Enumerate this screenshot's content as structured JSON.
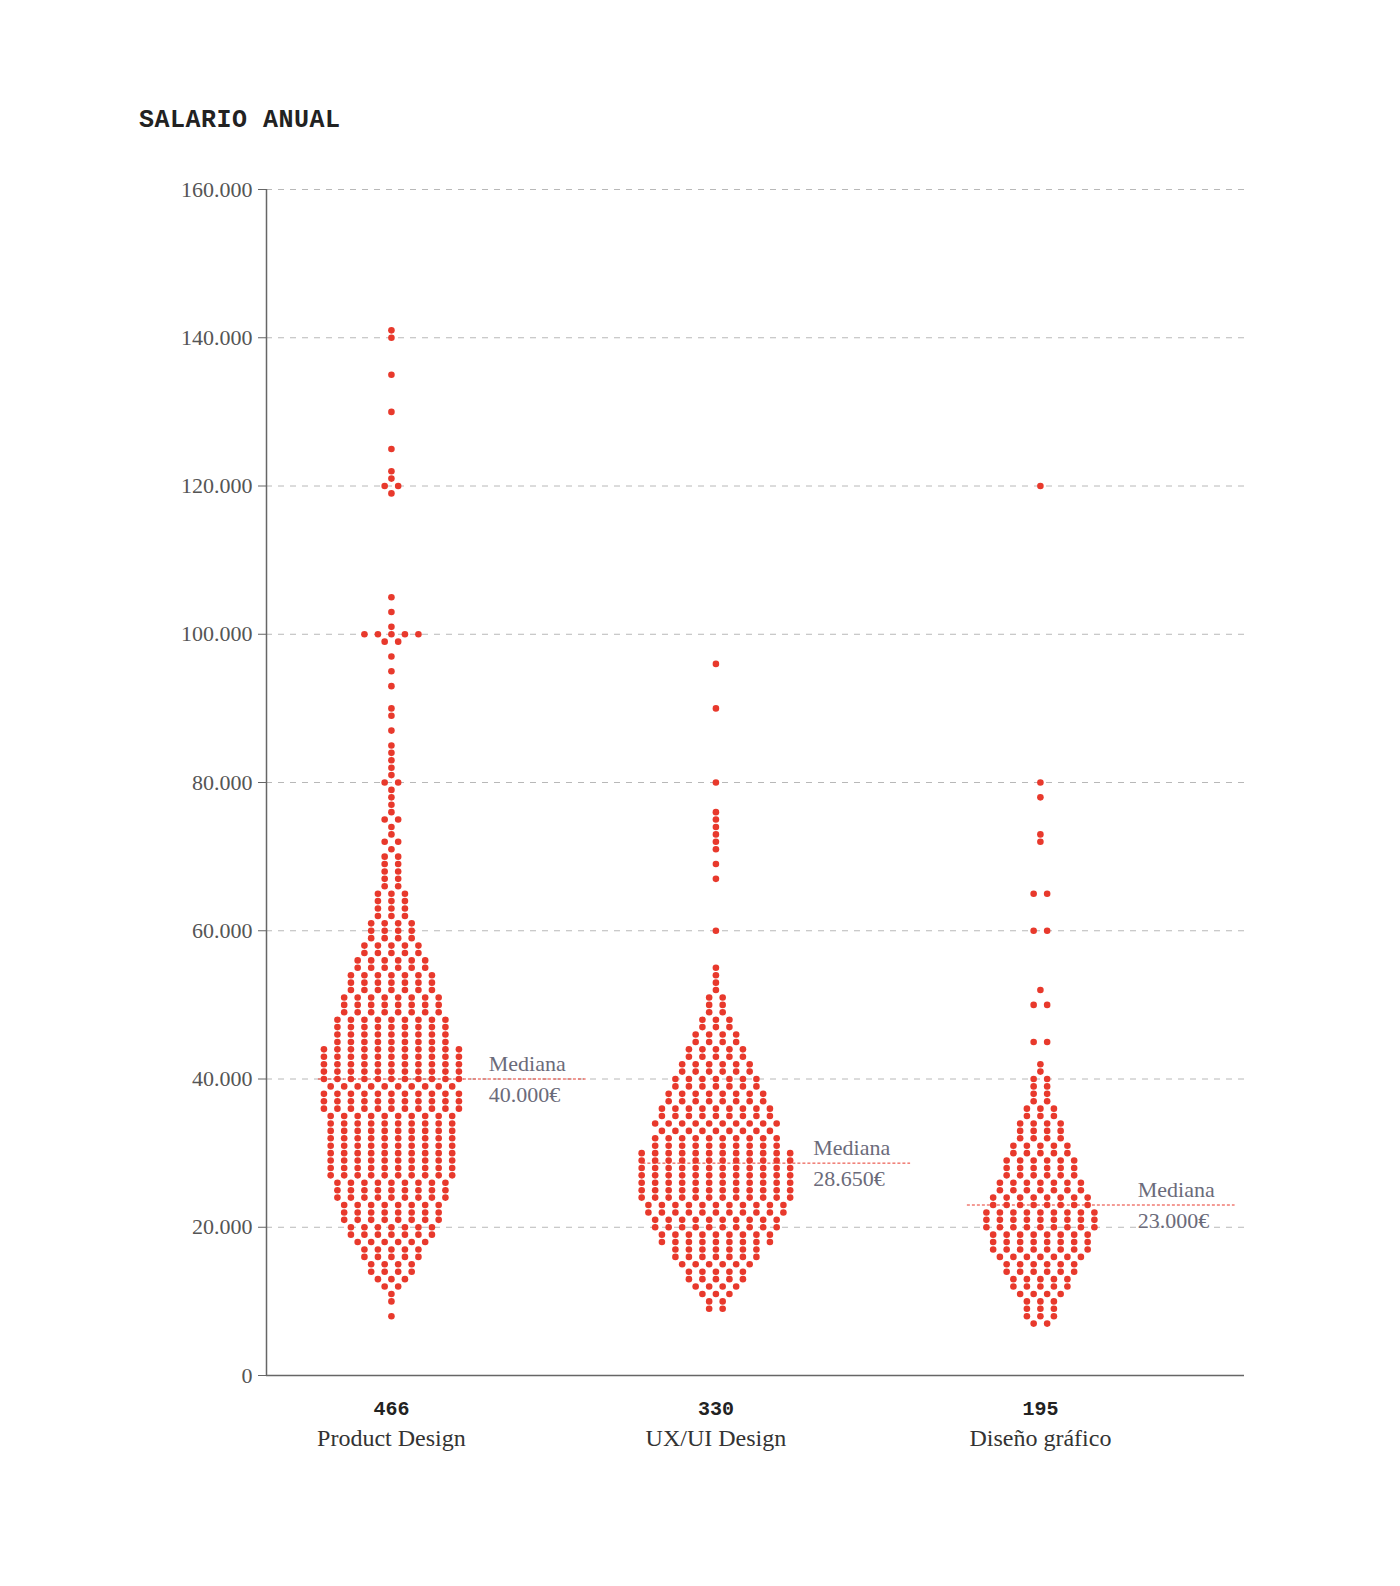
{
  "chart_data": {
    "type": "beeswarm",
    "title": "SALARIO ANUAL",
    "ylim": [
      0,
      160000
    ],
    "yticks": [
      0,
      {
        "value": 20000,
        "label": "20.000"
      },
      {
        "value": 40000,
        "label": "40.000"
      },
      {
        "value": 60000,
        "label": "60.000"
      },
      {
        "value": 80000,
        "label": "80.000"
      },
      {
        "value": 100000,
        "label": "100.000"
      },
      {
        "value": 120000,
        "label": "120.000"
      },
      {
        "value": 140000,
        "label": "140.000"
      },
      {
        "value": 160000,
        "label": "160.000"
      }
    ],
    "grid": true,
    "color": "#e8392c",
    "median_title": "Mediana",
    "series": [
      {
        "name": "Product Design",
        "n": 466,
        "median": 40000,
        "median_label": "40.000€",
        "values": [
          8000,
          10000,
          11000,
          12000,
          13000,
          14000,
          15000,
          16000,
          17000,
          18000,
          19000,
          20000,
          21000,
          22000,
          23000,
          24000,
          25000,
          26000,
          27000,
          28000,
          29000,
          30000,
          31000,
          32000,
          33000,
          34000,
          35000,
          36000,
          37000,
          38000,
          39000,
          40000,
          41000,
          42000,
          43000,
          44000,
          45000,
          46000,
          47000,
          48000,
          49000,
          50000,
          51000,
          52000,
          53000,
          54000,
          55000,
          56000,
          57000,
          58000,
          59000,
          60000,
          61000,
          62000,
          63000,
          64000,
          65000,
          66000,
          67000,
          68000,
          69000,
          70000,
          71000,
          72000,
          73000,
          74000,
          75000,
          76000,
          77000,
          78000,
          79000,
          80000,
          81000,
          82000,
          83000,
          84000,
          85000,
          87000,
          89000,
          90000,
          93000,
          95000,
          97000,
          99000,
          100000,
          101000,
          103000,
          105000,
          119000,
          120000,
          121000,
          122000,
          125000,
          130000,
          135000,
          140000,
          141000
        ],
        "counts": [
          1,
          1,
          1,
          2,
          3,
          4,
          4,
          5,
          5,
          6,
          7,
          7,
          8,
          8,
          8,
          9,
          9,
          9,
          10,
          10,
          10,
          10,
          10,
          10,
          10,
          10,
          10,
          11,
          11,
          11,
          10,
          11,
          11,
          11,
          11,
          11,
          9,
          9,
          9,
          9,
          8,
          8,
          8,
          7,
          7,
          7,
          6,
          6,
          5,
          5,
          4,
          4,
          4,
          3,
          3,
          3,
          3,
          2,
          2,
          2,
          2,
          2,
          1,
          2,
          1,
          1,
          2,
          1,
          1,
          1,
          1,
          2,
          1,
          1,
          1,
          1,
          1,
          1,
          1,
          1,
          1,
          1,
          1,
          2,
          5,
          1,
          1,
          1,
          1,
          2,
          1,
          1,
          1,
          1,
          1,
          1,
          1
        ]
      },
      {
        "name": "UX/UI Design",
        "n": 330,
        "median": 28650,
        "median_label": "28.650€",
        "values": [
          9000,
          10000,
          11000,
          12000,
          13000,
          14000,
          15000,
          16000,
          17000,
          18000,
          19000,
          20000,
          21000,
          22000,
          23000,
          24000,
          25000,
          26000,
          27000,
          28000,
          29000,
          30000,
          31000,
          32000,
          33000,
          34000,
          35000,
          36000,
          37000,
          38000,
          39000,
          40000,
          41000,
          42000,
          43000,
          44000,
          45000,
          46000,
          47000,
          48000,
          49000,
          50000,
          51000,
          52000,
          53000,
          54000,
          55000,
          60000,
          67000,
          69000,
          71000,
          72000,
          73000,
          74000,
          75000,
          76000,
          80000,
          90000,
          96000
        ],
        "counts": [
          2,
          2,
          3,
          4,
          5,
          5,
          6,
          7,
          7,
          9,
          9,
          10,
          10,
          11,
          11,
          12,
          12,
          12,
          12,
          12,
          12,
          12,
          10,
          10,
          9,
          10,
          9,
          9,
          8,
          8,
          7,
          7,
          6,
          6,
          5,
          5,
          4,
          4,
          3,
          3,
          2,
          2,
          2,
          1,
          1,
          1,
          1,
          1,
          1,
          1,
          1,
          1,
          1,
          1,
          1,
          1,
          1,
          1,
          1
        ]
      },
      {
        "name": "Diseño gráfico",
        "n": 195,
        "median": 23000,
        "median_label": "23.000€",
        "values": [
          7000,
          8000,
          9000,
          10000,
          11000,
          12000,
          13000,
          14000,
          15000,
          16000,
          17000,
          18000,
          19000,
          20000,
          21000,
          22000,
          23000,
          24000,
          25000,
          26000,
          27000,
          28000,
          29000,
          30000,
          31000,
          32000,
          33000,
          34000,
          35000,
          36000,
          37000,
          38000,
          39000,
          40000,
          41000,
          42000,
          45000,
          50000,
          52000,
          60000,
          65000,
          72000,
          73000,
          78000,
          80000,
          120000
        ],
        "counts": [
          2,
          3,
          3,
          3,
          4,
          5,
          5,
          6,
          6,
          7,
          8,
          8,
          8,
          9,
          9,
          9,
          8,
          8,
          7,
          7,
          6,
          6,
          6,
          5,
          5,
          4,
          4,
          4,
          3,
          3,
          2,
          2,
          2,
          2,
          1,
          1,
          2,
          2,
          1,
          2,
          2,
          1,
          1,
          1,
          1,
          1
        ]
      }
    ]
  }
}
